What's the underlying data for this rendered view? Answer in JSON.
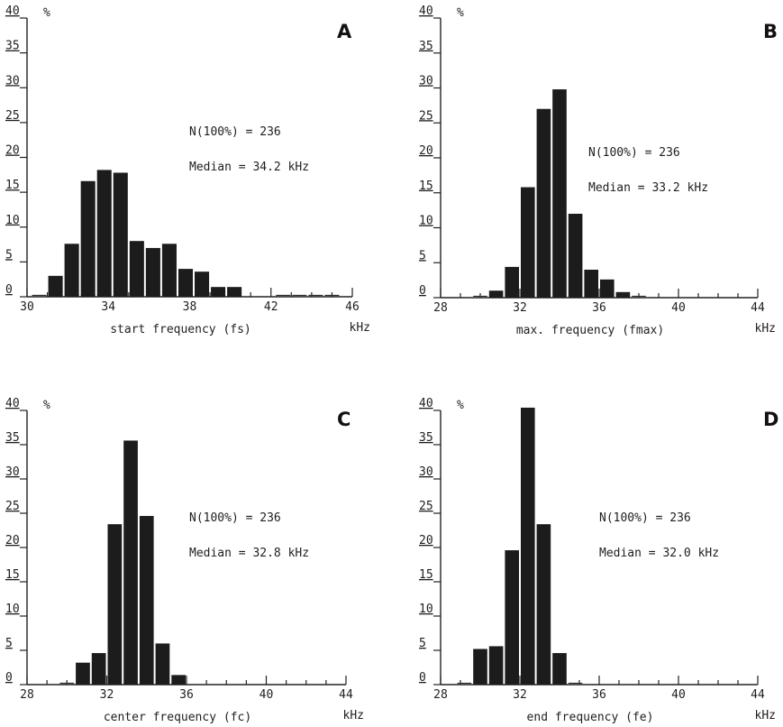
{
  "chart_data": [
    {
      "type": "bar",
      "panel_label": "A",
      "unit_label": "%",
      "xlabel": "start frequency (fs)",
      "x_unit": "kHz",
      "ylim": [
        0,
        40
      ],
      "xlim": [
        30,
        46
      ],
      "y_ticks": [
        0,
        5,
        10,
        15,
        20,
        25,
        30,
        35,
        40
      ],
      "x_ticks": [
        30,
        34,
        38,
        42,
        46
      ],
      "bin_width": 0.8,
      "bins": [
        30.2,
        31.0,
        31.8,
        32.6,
        33.4,
        34.2,
        35.0,
        35.8,
        36.6,
        37.4,
        38.2,
        39.0,
        39.8,
        40.6,
        41.4,
        42.2,
        43.0,
        43.8,
        44.6
      ],
      "values": [
        0.4,
        3.0,
        7.6,
        16.6,
        18.2,
        17.8,
        8.0,
        7.0,
        7.6,
        4.0,
        3.6,
        1.4,
        1.4,
        0,
        0,
        0.2,
        0.2,
        0.2,
        0.2
      ],
      "annotations": [
        "N(100%) = 236",
        "Median = 34.2 kHz"
      ]
    },
    {
      "type": "bar",
      "panel_label": "B",
      "unit_label": "%",
      "xlabel": "max. frequency (fmax)",
      "x_unit": "kHz",
      "ylim": [
        0,
        40
      ],
      "xlim": [
        28,
        44
      ],
      "y_ticks": [
        0,
        5,
        10,
        15,
        20,
        25,
        30,
        35,
        40
      ],
      "x_ticks": [
        28,
        32,
        36,
        40,
        44
      ],
      "bin_width": 0.8,
      "bins": [
        29.6,
        30.4,
        31.2,
        32.0,
        32.8,
        33.6,
        34.4,
        35.2,
        36.0,
        36.8,
        37.6
      ],
      "values": [
        0.2,
        1.0,
        4.4,
        15.8,
        27.0,
        29.8,
        12.0,
        4.0,
        2.6,
        0.8,
        0.6
      ],
      "annotations": [
        "N(100%) = 236",
        "Median = 33.2 kHz"
      ]
    },
    {
      "type": "bar",
      "panel_label": "C",
      "unit_label": "%",
      "xlabel": "center frequency (fc)",
      "x_unit": "kHz",
      "ylim": [
        0,
        40
      ],
      "xlim": [
        28,
        44
      ],
      "y_ticks": [
        0,
        5,
        10,
        15,
        20,
        25,
        30,
        35,
        40
      ],
      "x_ticks": [
        28,
        32,
        36,
        40,
        44
      ],
      "bin_width": 0.8,
      "bins": [
        29.6,
        30.4,
        31.2,
        32.0,
        32.8,
        33.6,
        34.4,
        35.2
      ],
      "values": [
        0.4,
        3.2,
        4.6,
        23.4,
        35.6,
        24.6,
        6.0,
        1.4
      ],
      "annotations": [
        "N(100%) = 236",
        "Median = 32.8 kHz"
      ]
    },
    {
      "type": "bar",
      "panel_label": "D",
      "unit_label": "%",
      "xlabel": "end frequency (fe)",
      "x_unit": "kHz",
      "ylim": [
        0,
        40
      ],
      "xlim": [
        28,
        44
      ],
      "y_ticks": [
        0,
        5,
        10,
        15,
        20,
        25,
        30,
        35,
        40
      ],
      "x_ticks": [
        28,
        32,
        36,
        40,
        44
      ],
      "bin_width": 0.8,
      "bins": [
        28.8,
        29.6,
        30.4,
        31.2,
        32.0,
        32.8,
        33.6,
        34.4
      ],
      "values": [
        0.6,
        5.2,
        5.6,
        19.6,
        40.4,
        23.4,
        4.6,
        0.2
      ],
      "annotations": [
        "N(100%) = 236",
        "Median = 32.0 kHz"
      ]
    }
  ]
}
